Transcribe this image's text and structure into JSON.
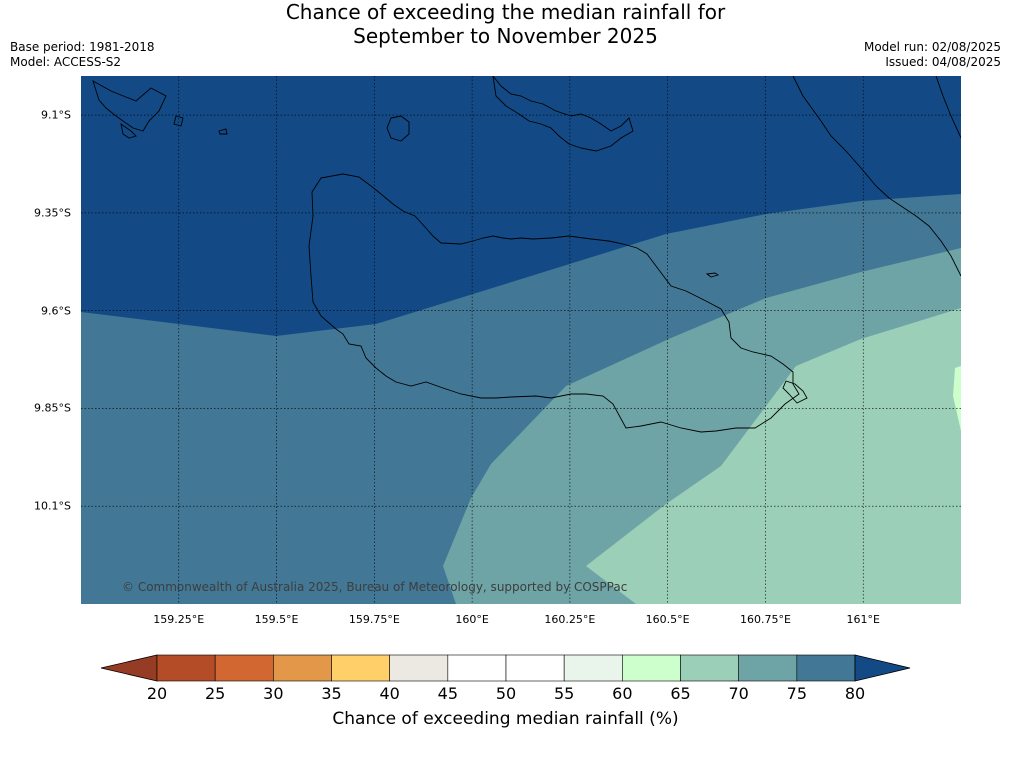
{
  "title": {
    "line1": "Chance of exceeding the median rainfall for",
    "line2": "September to November 2025"
  },
  "meta": {
    "base_period": "Base period: 1981-2018",
    "model": "Model: ACCESS-S2",
    "model_run": "Model run: 02/08/2025",
    "issued": "Issued: 04/08/2025"
  },
  "map": {
    "lat_labels": [
      "9.1°S",
      "9.35°S",
      "9.6°S",
      "9.85°S",
      "10.1°S"
    ],
    "lat_values": [
      -9.1,
      -9.35,
      -9.6,
      -9.85,
      -10.1
    ],
    "lon_labels": [
      "159.25°E",
      "159.5°E",
      "159.75°E",
      "160°E",
      "160.25°E",
      "160.5°E",
      "160.75°E",
      "161°E"
    ],
    "lon_values": [
      159.25,
      159.5,
      159.75,
      160.0,
      160.25,
      160.5,
      160.75,
      161.0
    ],
    "lon_range": [
      159.0,
      161.25
    ],
    "lat_range": [
      -9.0,
      -10.35
    ],
    "copyright": "© Commonwealth of Australia 2025, Bureau of Meteorology, supported by COSPPac",
    "zones": [
      {
        "name": "80+",
        "color": "#134a86"
      },
      {
        "name": "75-80",
        "color": "#427896"
      },
      {
        "name": "70-75",
        "color": "#6fa4a7"
      },
      {
        "name": "65-70",
        "color": "#9bcfb8"
      },
      {
        "name": "60-65",
        "color": "#ccffcc"
      }
    ]
  },
  "colorbar": {
    "title": "Chance of exceeding median rainfall (%)",
    "labels": [
      "20",
      "25",
      "30",
      "35",
      "40",
      "45",
      "50",
      "55",
      "60",
      "65",
      "70",
      "75",
      "80"
    ],
    "low_color": "#963c24",
    "high_color": "#134a86",
    "colors": [
      "#b44d27",
      "#d26732",
      "#e39748",
      "#ffd06a",
      "#ece9e3",
      "#ffffff",
      "#ffffff",
      "#e9f5ea",
      "#ccffcc",
      "#9bcfb8",
      "#6fa4a7",
      "#427896"
    ]
  }
}
